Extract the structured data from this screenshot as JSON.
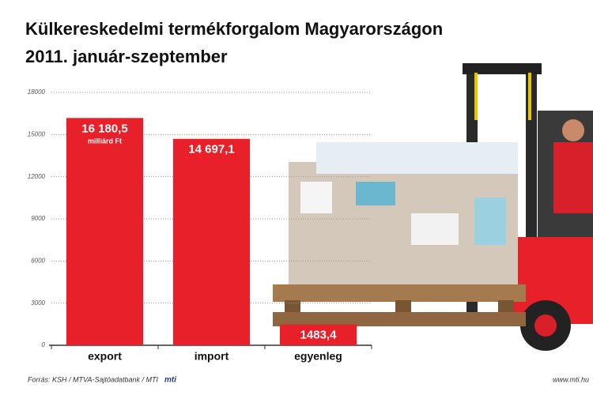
{
  "chart_data": {
    "type": "bar",
    "title": "Külkereskedelmi termékforgalom Magyarországon",
    "subtitle": "2011. január-szeptember",
    "categories": [
      "export",
      "import",
      "egyenleg"
    ],
    "values": [
      16180.5,
      14697.1,
      1483.4
    ],
    "value_labels": [
      "16 180,5",
      "14 697,1",
      "1483,4"
    ],
    "unit_label": "milliárd Ft",
    "color": "#e8202a",
    "ylim": [
      0,
      18000
    ],
    "yticks": [
      0,
      3000,
      6000,
      9000,
      12000,
      15000,
      18000
    ],
    "grid": true,
    "source": "Forrás: KSH / MTVA-Sajtóadatbank / MTI",
    "logo": "mti",
    "url": "www.mti.hu"
  }
}
